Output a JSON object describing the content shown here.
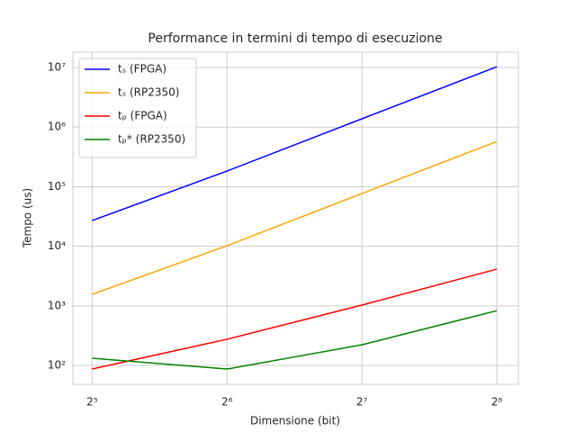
{
  "chart_data": {
    "type": "line",
    "title": "Performance in termini di tempo di esecuzione",
    "xlabel": "Dimensione (bit)",
    "ylabel": "Tempo (us)",
    "x": [
      32,
      64,
      128,
      256
    ],
    "series": [
      {
        "name": "tₛ (FPGA)",
        "color": "#0000ff",
        "values": [
          27000,
          183000,
          1380000,
          10300000
        ]
      },
      {
        "name": "tₛ (RP2350)",
        "color": "#ffa500",
        "values": [
          1560,
          10200,
          76700,
          575000
        ]
      },
      {
        "name": "tₚ (FPGA)",
        "color": "#ff0000",
        "values": [
          87,
          275,
          1030,
          4130
        ]
      },
      {
        "name": "tₚ* (RP2350)",
        "color": "#008000",
        "values": [
          132,
          87,
          222,
          830
        ]
      }
    ],
    "xscale": "log",
    "yscale": "log",
    "xlim": [
      29,
      286
    ],
    "ylim": [
      48.2,
      18100000
    ],
    "xticks": [
      {
        "value": 32,
        "label": "2⁵"
      },
      {
        "value": 64,
        "label": "2⁶"
      },
      {
        "value": 128,
        "label": "2⁷"
      },
      {
        "value": 256,
        "label": "2⁸"
      }
    ],
    "yticks": [
      {
        "value": 100,
        "label": "10²"
      },
      {
        "value": 1000,
        "label": "10³"
      },
      {
        "value": 10000,
        "label": "10⁴"
      },
      {
        "value": 100000,
        "label": "10⁵"
      },
      {
        "value": 1000000,
        "label": "10⁶"
      },
      {
        "value": 10000000,
        "label": "10⁷"
      }
    ],
    "grid": true,
    "legend": "upper left"
  }
}
